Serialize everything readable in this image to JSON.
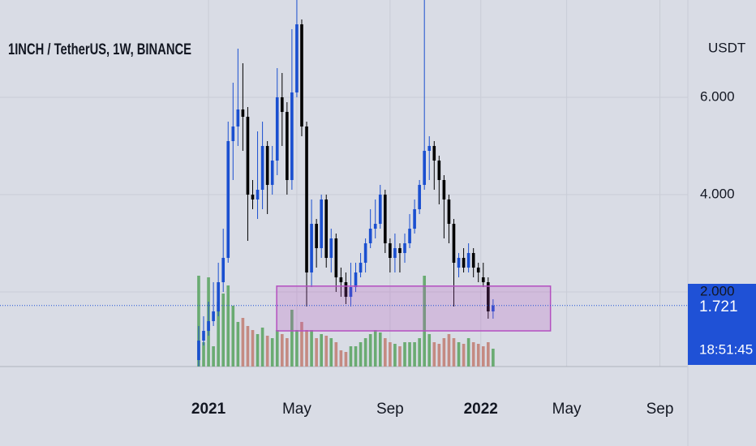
{
  "chart_data": {
    "type": "candlestick",
    "title": "1INCH / TetherUS, 1W, BINANCE",
    "y_axis_label": "USDT",
    "up_color": "#1a4fd0",
    "down_color": "#000000",
    "volume_up_color": "#6aab72",
    "volume_down_color": "#c48a82",
    "open": [
      0.6,
      1.0,
      1.2,
      1.4,
      1.6,
      2.2,
      2.7,
      5.1,
      5.4,
      5.75,
      5.6,
      4.0,
      3.9,
      4.1,
      5.0,
      4.2,
      4.7,
      6.0,
      5.7,
      4.3,
      6.1,
      7.5,
      5.4,
      2.4,
      3.4,
      2.9,
      3.9,
      2.7,
      3.1,
      2.3,
      2.2,
      1.9,
      2.1,
      2.4,
      2.6,
      3.0,
      3.3,
      3.4,
      4.0,
      3.0,
      2.7,
      2.9,
      2.8,
      3.0,
      3.3,
      3.7,
      4.2,
      4.9,
      5.0,
      4.7,
      4.3,
      3.9,
      3.4,
      2.5,
      2.7,
      2.5,
      2.8,
      2.5,
      2.3,
      2.2,
      1.6
    ],
    "high": [
      1.3,
      1.5,
      1.8,
      2.2,
      2.6,
      3.3,
      5.5,
      6.3,
      7.0,
      6.7,
      5.8,
      4.3,
      5.3,
      5.5,
      5.1,
      5.0,
      6.6,
      6.5,
      5.9,
      7.4,
      8.0,
      7.6,
      5.5,
      3.9,
      3.5,
      4.0,
      4.0,
      3.3,
      3.2,
      2.5,
      2.4,
      2.6,
      2.6,
      2.8,
      3.1,
      3.7,
      3.9,
      4.2,
      4.1,
      3.1,
      3.2,
      3.0,
      3.2,
      3.6,
      3.9,
      4.3,
      8.0,
      5.2,
      5.1,
      4.8,
      4.4,
      4.0,
      3.5,
      2.8,
      2.9,
      3.0,
      2.9,
      2.6,
      2.6,
      2.3,
      1.85
    ],
    "low": [
      0.47,
      0.9,
      1.1,
      1.3,
      1.5,
      2.0,
      2.6,
      4.3,
      5.0,
      4.9,
      3.05,
      3.7,
      3.5,
      3.7,
      3.6,
      4.0,
      4.4,
      5.0,
      4.0,
      4.1,
      6.0,
      5.2,
      1.7,
      2.1,
      2.5,
      2.7,
      2.5,
      2.4,
      2.0,
      1.9,
      1.75,
      1.7,
      2.0,
      2.3,
      2.4,
      2.9,
      3.1,
      3.3,
      2.8,
      2.4,
      2.4,
      2.4,
      2.6,
      2.9,
      3.2,
      3.6,
      4.1,
      4.3,
      4.1,
      3.8,
      3.1,
      3.0,
      1.7,
      2.3,
      2.4,
      2.4,
      2.3,
      2.2,
      2.1,
      1.45,
      1.45
    ],
    "close": [
      1.0,
      1.2,
      1.4,
      1.6,
      2.2,
      2.7,
      5.1,
      5.4,
      5.75,
      5.6,
      4.0,
      3.9,
      4.1,
      5.0,
      4.2,
      4.7,
      6.0,
      5.7,
      4.3,
      6.1,
      7.5,
      5.4,
      2.4,
      3.4,
      2.9,
      3.9,
      2.7,
      3.1,
      2.3,
      2.2,
      1.9,
      2.1,
      2.4,
      2.6,
      3.0,
      3.3,
      3.4,
      4.0,
      3.0,
      2.7,
      2.9,
      2.8,
      3.0,
      3.3,
      3.7,
      4.2,
      4.9,
      5.0,
      4.7,
      4.3,
      3.9,
      3.4,
      2.6,
      2.7,
      2.5,
      2.8,
      2.5,
      2.4,
      2.2,
      1.6,
      1.721
    ],
    "volume": [
      112,
      30,
      110,
      25,
      80,
      90,
      100,
      75,
      55,
      60,
      50,
      45,
      40,
      48,
      38,
      35,
      45,
      40,
      35,
      70,
      45,
      55,
      45,
      45,
      35,
      40,
      38,
      35,
      30,
      20,
      18,
      25,
      25,
      30,
      35,
      40,
      45,
      42,
      35,
      30,
      28,
      25,
      30,
      30,
      30,
      35,
      112,
      40,
      30,
      28,
      35,
      40,
      35,
      30,
      28,
      35,
      30,
      28,
      25,
      30,
      22
    ],
    "xlim": [
      -40.5,
      99.7
    ],
    "xticks": [
      {
        "value": 2,
        "label": "2021"
      },
      {
        "value": 20,
        "label": "May"
      },
      {
        "value": 39,
        "label": "Sep"
      },
      {
        "value": 57.5,
        "label": "2022"
      },
      {
        "value": 75,
        "label": "May"
      },
      {
        "value": 94,
        "label": "Sep"
      }
    ],
    "ylim": [
      0.467,
      8
    ],
    "yticks": [
      {
        "value": 2,
        "label": "2.000"
      },
      {
        "value": 4,
        "label": "4.000"
      },
      {
        "value": 6,
        "label": "6.000"
      }
    ],
    "grid": true,
    "box": {
      "x": [
        15.9,
        71.7
      ],
      "y": [
        1.2,
        2.12
      ],
      "color": "#b44fc0"
    },
    "last_price": {
      "value": 1.721,
      "label": "1.721",
      "countdown": "18:51:45",
      "color": "#1f51d6"
    }
  }
}
